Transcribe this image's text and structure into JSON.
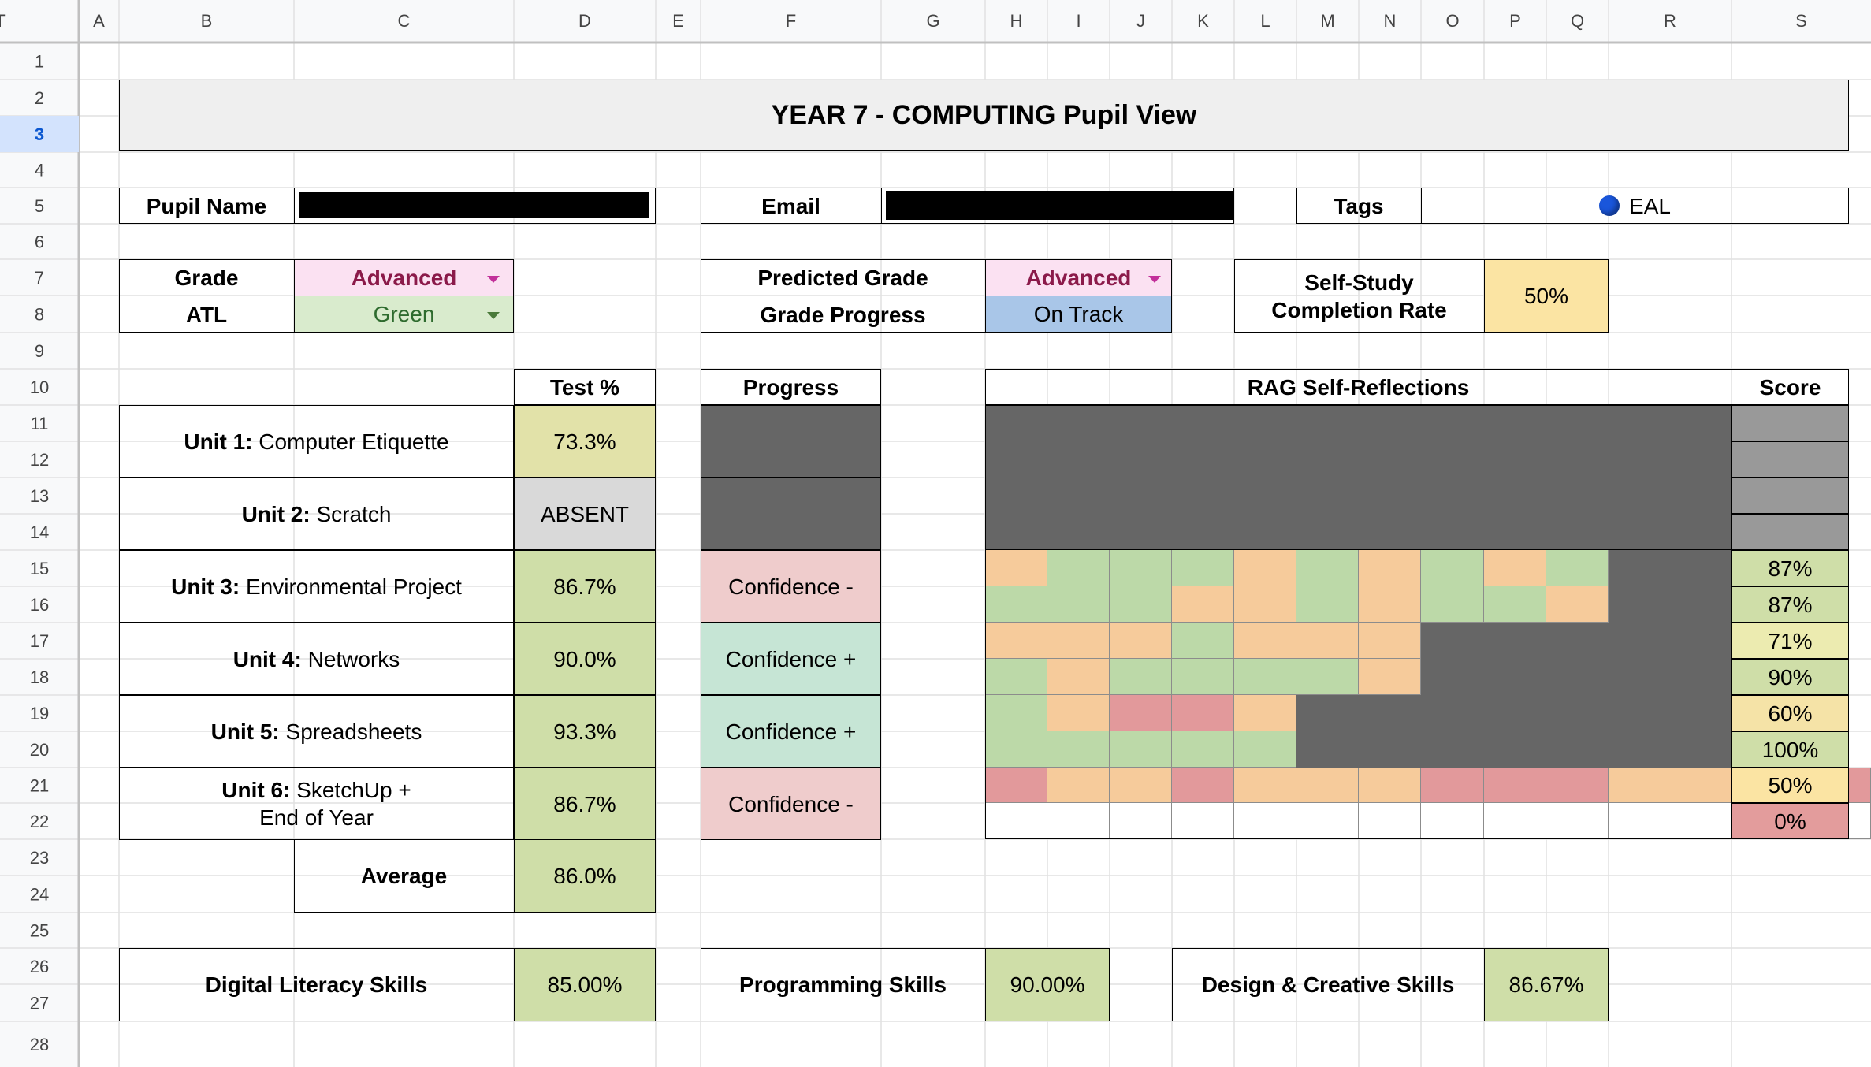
{
  "columns": [
    "A",
    "B",
    "C",
    "D",
    "E",
    "F",
    "G",
    "H",
    "I",
    "J",
    "K",
    "L",
    "M",
    "N",
    "O",
    "P",
    "Q",
    "R",
    "S",
    "T"
  ],
  "rows": [
    "1",
    "2",
    "3",
    "4",
    "5",
    "6",
    "7",
    "8",
    "9",
    "10",
    "11",
    "12",
    "13",
    "14",
    "15",
    "16",
    "17",
    "18",
    "19",
    "20",
    "21",
    "22",
    "23",
    "24",
    "25",
    "26",
    "27",
    "28"
  ],
  "selected_row": "3",
  "title": "YEAR 7 - COMPUTING Pupil View",
  "pupil": {
    "name_label": "Pupil Name",
    "email_label": "Email",
    "tags_label": "Tags",
    "tag_value": "EAL",
    "tag_color": "#1a56db"
  },
  "grade": {
    "label": "Grade",
    "value": "Advanced",
    "value_color": "#8b1a4a",
    "bg": "#fbe1f2",
    "arrow_color": "#c2309a"
  },
  "atl": {
    "label": "ATL",
    "value": "Green",
    "value_color": "#2e6b2e",
    "bg": "#d9ebcd",
    "arrow_color": "#4a7a3a"
  },
  "predicted": {
    "label": "Predicted Grade",
    "value": "Advanced"
  },
  "grade_progress": {
    "label": "Grade Progress",
    "value": "On Track",
    "bg": "#a9c6e8"
  },
  "self_study": {
    "label_line1": "Self-Study",
    "label_line2": "Completion Rate",
    "value": "50%",
    "bg": "#fbe4a3"
  },
  "headers": {
    "test": "Test %",
    "progress": "Progress",
    "rag": "RAG Self-Reflections",
    "score": "Score"
  },
  "units": [
    {
      "bold": "Unit 1:",
      "name": "Computer Etiquette",
      "test": "73.3%",
      "test_bg": "#e2e2a9",
      "progress": "",
      "progress_bg": "#666666"
    },
    {
      "bold": "Unit 2:",
      "name": "Scratch",
      "test": "ABSENT",
      "test_bg": "#d9d9d9",
      "progress": "",
      "progress_bg": "#666666"
    },
    {
      "bold": "Unit 3:",
      "name": "Environmental Project",
      "test": "86.7%",
      "test_bg": "#cfdea8",
      "progress": "Confidence -",
      "progress_bg": "#efcccc"
    },
    {
      "bold": "Unit 4:",
      "name": "Networks",
      "test": "90.0%",
      "test_bg": "#cfdea8",
      "progress": "Confidence +",
      "progress_bg": "#c6e5d5"
    },
    {
      "bold": "Unit 5:",
      "name": "Spreadsheets",
      "test": "93.3%",
      "test_bg": "#cfdea8",
      "progress": "Confidence +",
      "progress_bg": "#c6e5d5"
    },
    {
      "bold": "Unit 6:",
      "name": "SketchUp +",
      "name2": "End of Year",
      "test": "86.7%",
      "test_bg": "#cfdea8",
      "progress": "Confidence -",
      "progress_bg": "#efcccc"
    }
  ],
  "average": {
    "label": "Average",
    "value": "86.0%",
    "bg": "#cfdea8"
  },
  "scores": [
    {
      "value": "",
      "bg": "#999999"
    },
    {
      "value": "",
      "bg": "#999999"
    },
    {
      "value": "",
      "bg": "#999999"
    },
    {
      "value": "",
      "bg": "#999999"
    },
    {
      "value": "87%",
      "bg": "#cfdea8"
    },
    {
      "value": "87%",
      "bg": "#cfdea8"
    },
    {
      "value": "71%",
      "bg": "#ecebb0"
    },
    {
      "value": "90%",
      "bg": "#cfdea8"
    },
    {
      "value": "60%",
      "bg": "#f5e3a7"
    },
    {
      "value": "100%",
      "bg": "#cfdea8"
    },
    {
      "value": "50%",
      "bg": "#fbe4a3"
    },
    {
      "value": "0%",
      "bg": "#e39c9c"
    }
  ],
  "rag_colors": {
    "G": "#bcd9a8",
    "A": "#f6cb9b",
    "R": "#e2999b",
    "W": "#ffffff",
    "X": "#666666"
  },
  "rag_rows": [
    "AGGGAGAGAGXXX",
    "GGGAAGAGGAXXX",
    "AAAGAAAXXXXXX",
    "GAGGGGAXXXXXX",
    "GARRAXXXXXXXX",
    "GGGGGXXXXXXXX",
    "RAARAAARRRAR",
    "WWWWWWWWWWWW"
  ],
  "skills": [
    {
      "label": "Digital Literacy Skills",
      "value": "85.00%"
    },
    {
      "label": "Programming Skills",
      "value": "90.00%"
    },
    {
      "label": "Design & Creative Skills",
      "value": "86.67%"
    }
  ],
  "skill_bg": "#cfdea8"
}
